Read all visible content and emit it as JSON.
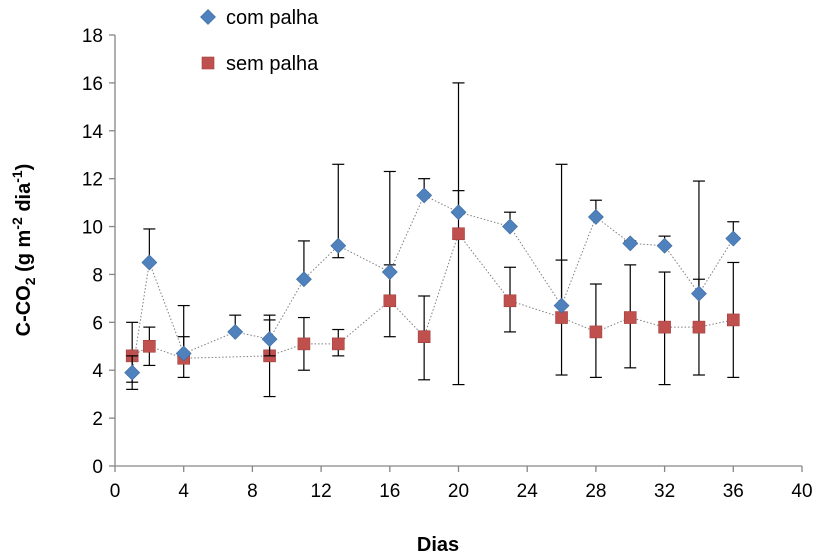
{
  "chart_data": {
    "type": "scatter",
    "xlabel": "Dias",
    "ylabel": {
      "parts": [
        "C-CO",
        "2",
        " (g m",
        "-2",
        " dia",
        "-1",
        ")"
      ]
    },
    "xlim": [
      0,
      40
    ],
    "ylim": [
      0,
      18
    ],
    "x_ticks": [
      0,
      4,
      8,
      12,
      16,
      20,
      24,
      28,
      32,
      36,
      40
    ],
    "y_ticks": [
      0,
      2,
      4,
      6,
      8,
      10,
      12,
      14,
      16,
      18
    ],
    "x_tick_labels": [
      "0",
      "4",
      "8",
      "12",
      "16",
      "20",
      "24",
      "28",
      "32",
      "36",
      "40"
    ],
    "y_tick_labels": [
      "0",
      "2",
      "4",
      "6",
      "8",
      "10",
      "12",
      "14",
      "16",
      "18"
    ],
    "grid": false,
    "legend": "top-left",
    "series": [
      {
        "name": "com palha",
        "color": "#4F81BD",
        "marker": "diamond",
        "points": [
          {
            "x": 1,
            "y": 3.9,
            "err_low": 3.2,
            "err_high": 4.6
          },
          {
            "x": 2,
            "y": 8.5,
            "err_low": 8.5,
            "err_high": 9.9
          },
          {
            "x": 4,
            "y": 4.7,
            "err_low": 4.7,
            "err_high": 6.7
          },
          {
            "x": 7,
            "y": 5.6,
            "err_low": 5.6,
            "err_high": 6.3
          },
          {
            "x": 9,
            "y": 5.3,
            "err_low": 4.6,
            "err_high": 6.1
          },
          {
            "x": 11,
            "y": 7.8,
            "err_low": 7.8,
            "err_high": 9.4
          },
          {
            "x": 13,
            "y": 9.2,
            "err_low": 8.7,
            "err_high": 12.6
          },
          {
            "x": 16,
            "y": 8.1,
            "err_low": 8.1,
            "err_high": 12.3
          },
          {
            "x": 18,
            "y": 11.3,
            "err_low": 11.3,
            "err_high": 12.0
          },
          {
            "x": 20,
            "y": 10.6,
            "err_low": 10.6,
            "err_high": 11.5
          },
          {
            "x": 23,
            "y": 10.0,
            "err_low": 10.0,
            "err_high": 10.6
          },
          {
            "x": 26,
            "y": 6.7,
            "err_low": 6.7,
            "err_high": 12.6
          },
          {
            "x": 28,
            "y": 10.4,
            "err_low": 10.4,
            "err_high": 11.1
          },
          {
            "x": 30,
            "y": 9.3,
            "err_low": 9.3,
            "err_high": 9.4
          },
          {
            "x": 32,
            "y": 9.2,
            "err_low": 9.2,
            "err_high": 9.6
          },
          {
            "x": 34,
            "y": 7.2,
            "err_low": 7.2,
            "err_high": 11.9
          },
          {
            "x": 36,
            "y": 9.5,
            "err_low": 9.5,
            "err_high": 10.2
          }
        ]
      },
      {
        "name": "sem palha",
        "color": "#C0504D",
        "marker": "square",
        "points": [
          {
            "x": 1,
            "y": 4.6,
            "err_low": 3.5,
            "err_high": 6.0
          },
          {
            "x": 2,
            "y": 5.0,
            "err_low": 4.2,
            "err_high": 5.8
          },
          {
            "x": 4,
            "y": 4.5,
            "err_low": 3.7,
            "err_high": 5.4
          },
          {
            "x": 9,
            "y": 4.6,
            "err_low": 2.9,
            "err_high": 6.3
          },
          {
            "x": 11,
            "y": 5.1,
            "err_low": 4.0,
            "err_high": 6.2
          },
          {
            "x": 13,
            "y": 5.1,
            "err_low": 4.6,
            "err_high": 5.7
          },
          {
            "x": 16,
            "y": 6.9,
            "err_low": 5.4,
            "err_high": 8.4
          },
          {
            "x": 18,
            "y": 5.4,
            "err_low": 3.6,
            "err_high": 7.1
          },
          {
            "x": 20,
            "y": 9.7,
            "err_low": 3.4,
            "err_high": 16.0
          },
          {
            "x": 23,
            "y": 6.9,
            "err_low": 5.6,
            "err_high": 8.3
          },
          {
            "x": 26,
            "y": 6.2,
            "err_low": 3.8,
            "err_high": 8.6
          },
          {
            "x": 28,
            "y": 5.6,
            "err_low": 3.7,
            "err_high": 7.6
          },
          {
            "x": 30,
            "y": 6.2,
            "err_low": 4.1,
            "err_high": 8.4
          },
          {
            "x": 32,
            "y": 5.8,
            "err_low": 3.4,
            "err_high": 8.1
          },
          {
            "x": 34,
            "y": 5.8,
            "err_low": 3.8,
            "err_high": 7.8
          },
          {
            "x": 36,
            "y": 6.1,
            "err_low": 3.7,
            "err_high": 8.5
          }
        ]
      }
    ]
  }
}
